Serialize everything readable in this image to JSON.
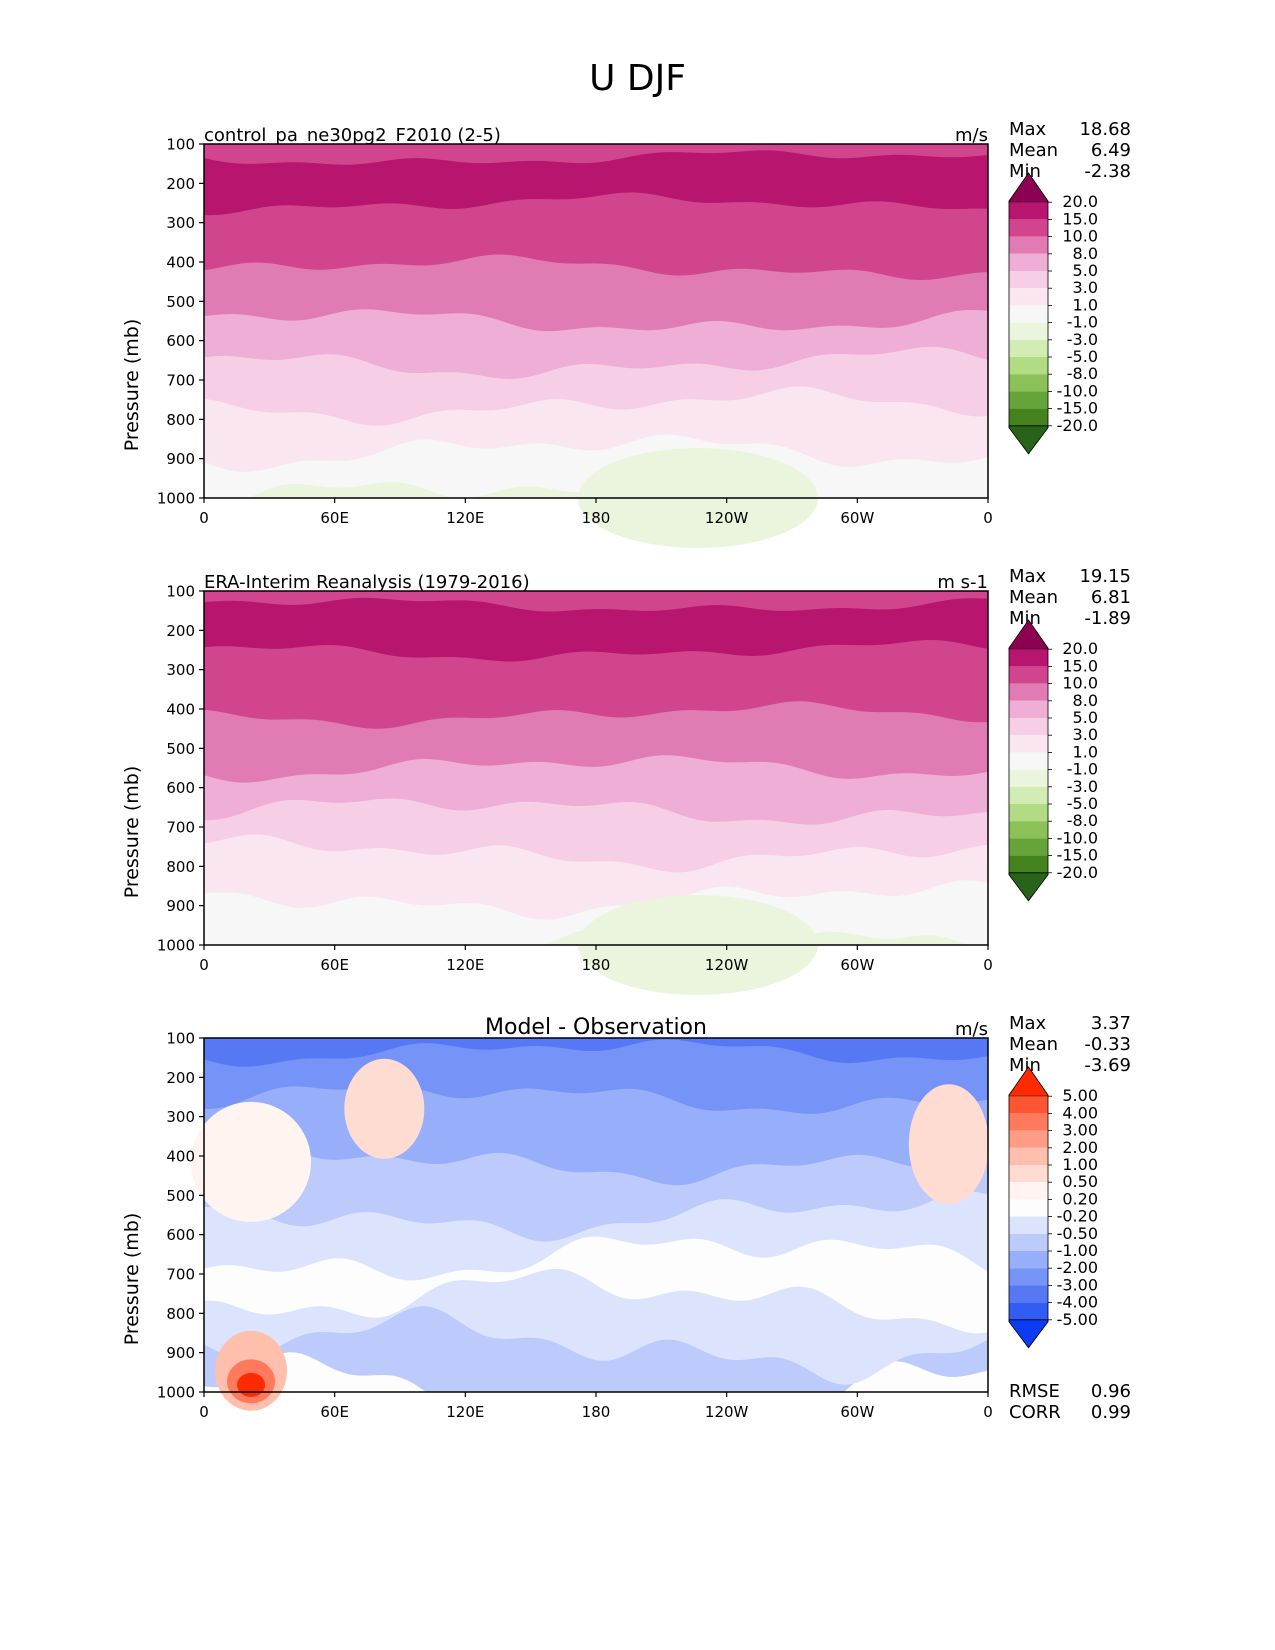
{
  "figure_title": "U DJF",
  "chart_data": [
    {
      "type": "heatmap",
      "title": "control_pa_ne30pg2_F2010 (2-5)",
      "units": "m/s",
      "xlabel": "",
      "ylabel": "Pressure (mb)",
      "xticks": [
        "0",
        "60E",
        "120E",
        "180",
        "120W",
        "60W",
        "0"
      ],
      "yticks": [
        100,
        200,
        300,
        400,
        500,
        600,
        700,
        800,
        900,
        1000
      ],
      "ylim": [
        1000,
        100
      ],
      "stats": {
        "max": "18.68",
        "mean": "6.49",
        "min": "-2.38"
      },
      "stat_labels": {
        "max": "Max",
        "mean": "Mean",
        "min": "Min"
      },
      "colorbar": {
        "labels": [
          "20.0",
          "15.0",
          "10.0",
          "8.0",
          "5.0",
          "3.0",
          "1.0",
          "-1.0",
          "-3.0",
          "-5.0",
          "-8.0",
          "-10.0",
          "-15.0",
          "-20.0"
        ],
        "colors": [
          "#8e0152",
          "#b8156e",
          "#d1458f",
          "#e17bb3",
          "#eeaed5",
          "#f6cfe6",
          "#fae6f1",
          "#f7f7f7",
          "#ebf5dd",
          "#d3ecb3",
          "#b1dc84",
          "#8cc15a",
          "#66a43b",
          "#44821e",
          "#276419"
        ]
      },
      "levels": [
        0.52,
        0.4,
        0.3,
        0.18,
        0.08,
        -0.04,
        -0.18,
        -0.55
      ]
    },
    {
      "type": "heatmap",
      "title": "ERA-Interim Reanalysis (1979-2016)",
      "units": "m s-1",
      "xlabel": "",
      "ylabel": "Pressure (mb)",
      "xticks": [
        "0",
        "60E",
        "120E",
        "180",
        "120W",
        "60W",
        "0"
      ],
      "yticks": [
        100,
        200,
        300,
        400,
        500,
        600,
        700,
        800,
        900,
        1000
      ],
      "ylim": [
        1000,
        100
      ],
      "stats": {
        "max": "19.15",
        "mean": "6.81",
        "min": "-1.89"
      },
      "stat_labels": {
        "max": "Max",
        "mean": "Mean",
        "min": "Min"
      },
      "colorbar": {
        "labels": [
          "20.0",
          "15.0",
          "10.0",
          "8.0",
          "5.0",
          "3.0",
          "1.0",
          "-1.0",
          "-3.0",
          "-5.0",
          "-8.0",
          "-10.0",
          "-15.0",
          "-20.0"
        ],
        "colors": [
          "#8e0152",
          "#b8156e",
          "#d1458f",
          "#e17bb3",
          "#eeaed5",
          "#f6cfe6",
          "#fae6f1",
          "#f7f7f7",
          "#ebf5dd",
          "#d3ecb3",
          "#b1dc84",
          "#8cc15a",
          "#66a43b",
          "#44821e",
          "#276419"
        ]
      },
      "levels": [
        0.52,
        0.42,
        0.3,
        0.18,
        0.08,
        -0.04,
        -0.16,
        -0.5
      ]
    },
    {
      "type": "heatmap",
      "title": "Model - Observation",
      "units": "m/s",
      "xlabel": "",
      "ylabel": "Pressure (mb)",
      "xticks": [
        "0",
        "60E",
        "120E",
        "180",
        "120W",
        "60W",
        "0"
      ],
      "yticks": [
        100,
        200,
        300,
        400,
        500,
        600,
        700,
        800,
        900,
        1000
      ],
      "ylim": [
        1000,
        100
      ],
      "stats": {
        "max": "3.37",
        "mean": "-0.33",
        "min": "-3.69"
      },
      "stat_labels": {
        "max": "Max",
        "mean": "Mean",
        "min": "Min"
      },
      "extra_stats": {
        "rmse": "0.96",
        "corr": "0.99"
      },
      "extra_labels": {
        "rmse": "RMSE",
        "corr": "CORR"
      },
      "colorbar": {
        "labels": [
          "5.00",
          "4.00",
          "3.00",
          "2.00",
          "1.00",
          "0.50",
          "0.20",
          "-0.20",
          "-0.50",
          "-1.00",
          "-2.00",
          "-3.00",
          "-4.00",
          "-5.00"
        ],
        "colors": [
          "#ff2a00",
          "#ff5533",
          "#ff7a5c",
          "#ff9c85",
          "#ffbfad",
          "#ffdcd2",
          "#fff4f0",
          "#fdfdfd",
          "#dce4fd",
          "#bccbfb",
          "#97aefa",
          "#7693f7",
          "#5678f5",
          "#325cf3",
          "#0c3cf2"
        ]
      },
      "levels": [
        0.22,
        0.14,
        0.07,
        -0.03,
        -0.14,
        -0.3,
        -0.6,
        -0.85
      ]
    }
  ]
}
